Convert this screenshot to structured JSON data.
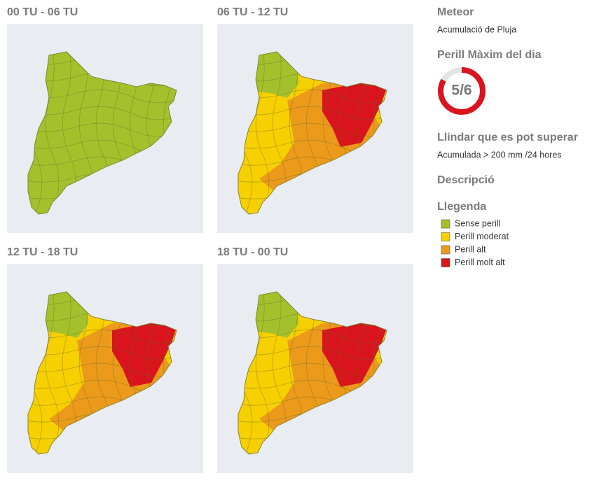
{
  "panels": [
    {
      "title": "00 TU - 06 TU"
    },
    {
      "title": "06 TU - 12 TU"
    },
    {
      "title": "12 TU - 18 TU"
    },
    {
      "title": "18 TU - 00 TU"
    }
  ],
  "sidebar": {
    "meteor_heading": "Meteor",
    "meteor": "Acumulació de Pluja",
    "danger_heading": "Perill Màxim del dia",
    "danger": {
      "value": 5,
      "max": 6,
      "label": "5/6",
      "color": "#d9141c"
    },
    "threshold_heading": "Llindar que es pot superar",
    "threshold": "Acumulada > 200 mm /24 hores",
    "description_heading": "Descripció",
    "legend_heading": "Llegenda",
    "legend": [
      {
        "label": "Sense perill",
        "color": "#a4c12b"
      },
      {
        "label": "Perill moderat",
        "color": "#f7d000"
      },
      {
        "label": "Perill alt",
        "color": "#ec9a1a"
      },
      {
        "label": "Perill molt alt",
        "color": "#d9141c"
      }
    ]
  }
}
